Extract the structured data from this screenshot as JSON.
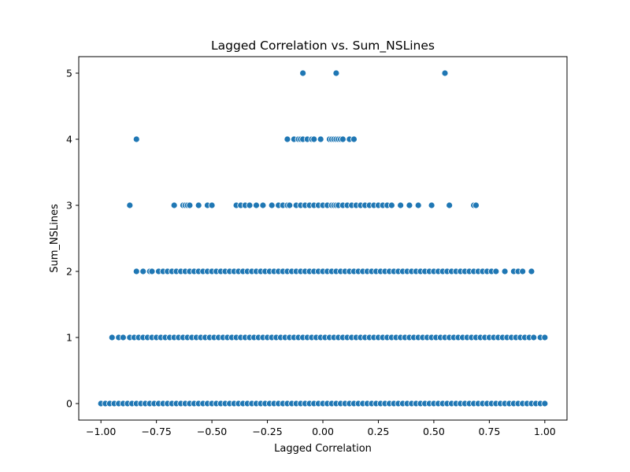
{
  "chart_data": {
    "type": "scatter",
    "title": "Lagged Correlation vs. Sum_NSLines",
    "xlabel": "Lagged Correlation",
    "ylabel": "Sum_NSLines",
    "xlim": [
      -1.1,
      1.1
    ],
    "ylim": [
      -0.25,
      5.25
    ],
    "xticks": [
      -1.0,
      -0.75,
      -0.5,
      -0.25,
      0.0,
      0.25,
      0.5,
      0.75,
      1.0
    ],
    "xtick_labels": [
      "−1.00",
      "−0.75",
      "−0.50",
      "−0.25",
      "0.00",
      "0.25",
      "0.50",
      "0.75",
      "1.00"
    ],
    "yticks": [
      0,
      1,
      2,
      3,
      4,
      5
    ],
    "ytick_labels": [
      "0",
      "1",
      "2",
      "3",
      "4",
      "5"
    ],
    "grid": false,
    "marker_color": "#1f77b4",
    "series": [
      {
        "values_by_level": {
          "5": [
            -0.09,
            0.06,
            0.55
          ],
          "4": [
            -0.84,
            -0.16,
            -0.13,
            -0.11,
            -0.1,
            -0.09,
            -0.07,
            -0.05,
            -0.04,
            -0.01,
            0.03,
            0.04,
            0.05,
            0.06,
            0.07,
            0.08,
            0.09,
            0.12,
            0.14
          ],
          "3": [
            -0.87,
            -0.67,
            -0.63,
            -0.62,
            -0.61,
            -0.6,
            -0.56,
            -0.52,
            -0.5,
            -0.39,
            -0.37,
            -0.35,
            -0.33,
            -0.3,
            -0.27,
            -0.23,
            -0.2,
            -0.18,
            -0.16,
            -0.15,
            -0.12,
            -0.1,
            -0.08,
            -0.06,
            -0.04,
            -0.02,
            0.0,
            0.02,
            0.04,
            0.05,
            0.06,
            0.07,
            0.09,
            0.11,
            0.13,
            0.15,
            0.17,
            0.19,
            0.21,
            0.23,
            0.25,
            0.27,
            0.29,
            0.31,
            0.35,
            0.39,
            0.43,
            0.49,
            0.57,
            0.68,
            0.69
          ],
          "2": [
            -0.84,
            -0.81,
            -0.78,
            -0.77,
            -0.74,
            -0.72,
            -0.7,
            -0.68,
            -0.66,
            -0.64,
            -0.62,
            -0.6,
            -0.58,
            -0.56,
            -0.54,
            -0.52,
            -0.5,
            -0.48,
            -0.46,
            -0.44,
            -0.42,
            -0.4,
            -0.38,
            -0.36,
            -0.34,
            -0.32,
            -0.3,
            -0.28,
            -0.26,
            -0.24,
            -0.22,
            -0.2,
            -0.18,
            -0.16,
            -0.14,
            -0.12,
            -0.1,
            -0.08,
            -0.06,
            -0.04,
            -0.02,
            0.0,
            0.02,
            0.04,
            0.06,
            0.08,
            0.1,
            0.12,
            0.14,
            0.16,
            0.18,
            0.2,
            0.22,
            0.24,
            0.26,
            0.28,
            0.3,
            0.32,
            0.34,
            0.36,
            0.38,
            0.4,
            0.42,
            0.44,
            0.46,
            0.48,
            0.5,
            0.52,
            0.54,
            0.56,
            0.58,
            0.6,
            0.62,
            0.64,
            0.66,
            0.68,
            0.7,
            0.72,
            0.74,
            0.76,
            0.78,
            0.82,
            0.86,
            0.88,
            0.9,
            0.94
          ],
          "1": [
            -0.95,
            -0.92,
            -0.9,
            -0.87,
            -0.85,
            -0.83,
            -0.81,
            -0.79,
            -0.77,
            -0.75,
            -0.73,
            -0.71,
            -0.69,
            -0.67,
            -0.65,
            -0.63,
            -0.61,
            -0.59,
            -0.57,
            -0.55,
            -0.53,
            -0.51,
            -0.49,
            -0.47,
            -0.45,
            -0.43,
            -0.41,
            -0.39,
            -0.37,
            -0.35,
            -0.33,
            -0.31,
            -0.29,
            -0.27,
            -0.25,
            -0.23,
            -0.21,
            -0.19,
            -0.17,
            -0.15,
            -0.13,
            -0.11,
            -0.09,
            -0.07,
            -0.05,
            -0.03,
            -0.01,
            0.01,
            0.03,
            0.05,
            0.07,
            0.09,
            0.11,
            0.13,
            0.15,
            0.17,
            0.19,
            0.21,
            0.23,
            0.25,
            0.27,
            0.29,
            0.31,
            0.33,
            0.35,
            0.37,
            0.39,
            0.41,
            0.43,
            0.45,
            0.47,
            0.49,
            0.51,
            0.53,
            0.55,
            0.57,
            0.59,
            0.61,
            0.63,
            0.65,
            0.67,
            0.69,
            0.71,
            0.73,
            0.75,
            0.77,
            0.79,
            0.81,
            0.83,
            0.85,
            0.87,
            0.89,
            0.91,
            0.93,
            0.95,
            0.98,
            1.0
          ],
          "0": [
            -1.0,
            -0.98,
            -0.96,
            -0.94,
            -0.92,
            -0.9,
            -0.88,
            -0.86,
            -0.84,
            -0.82,
            -0.8,
            -0.78,
            -0.76,
            -0.74,
            -0.72,
            -0.7,
            -0.68,
            -0.66,
            -0.64,
            -0.62,
            -0.6,
            -0.58,
            -0.56,
            -0.54,
            -0.52,
            -0.5,
            -0.48,
            -0.46,
            -0.44,
            -0.42,
            -0.4,
            -0.38,
            -0.36,
            -0.34,
            -0.32,
            -0.3,
            -0.28,
            -0.26,
            -0.24,
            -0.22,
            -0.2,
            -0.18,
            -0.16,
            -0.14,
            -0.12,
            -0.1,
            -0.08,
            -0.06,
            -0.04,
            -0.02,
            0.0,
            0.02,
            0.04,
            0.06,
            0.08,
            0.1,
            0.12,
            0.14,
            0.16,
            0.18,
            0.2,
            0.22,
            0.24,
            0.26,
            0.28,
            0.3,
            0.32,
            0.34,
            0.36,
            0.38,
            0.4,
            0.42,
            0.44,
            0.46,
            0.48,
            0.5,
            0.52,
            0.54,
            0.56,
            0.58,
            0.6,
            0.62,
            0.64,
            0.66,
            0.68,
            0.7,
            0.72,
            0.74,
            0.76,
            0.78,
            0.8,
            0.82,
            0.84,
            0.86,
            0.88,
            0.9,
            0.92,
            0.94,
            0.96,
            0.98,
            1.0
          ]
        }
      }
    ]
  }
}
